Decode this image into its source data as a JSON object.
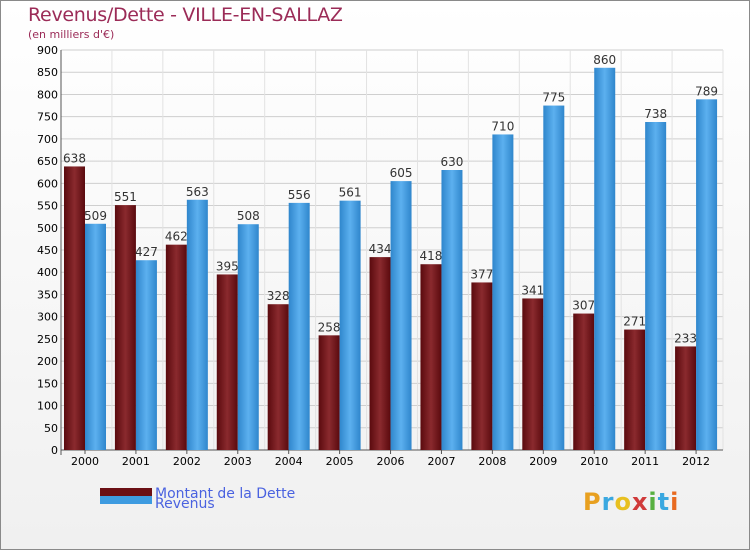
{
  "header": {
    "title": "Revenus/Dette - VILLE-EN-SALLAZ",
    "subtitle": "(en milliers d'€)"
  },
  "colors": {
    "dette": "#6b0f14",
    "revenus": "#3e9be0",
    "grid": "#cfcfcf",
    "axis_text": "#000000"
  },
  "chart_data": {
    "type": "bar",
    "title": "Revenus/Dette - VILLE-EN-SALLAZ",
    "subtitle": "(en milliers d'€)",
    "xlabel": "",
    "ylabel": "",
    "ylim": [
      0,
      900
    ],
    "yticks": [
      0,
      50,
      100,
      150,
      200,
      250,
      300,
      350,
      400,
      450,
      500,
      550,
      600,
      650,
      700,
      750,
      800,
      850,
      900
    ],
    "grid": true,
    "legend_position": "bottom-left",
    "categories": [
      "2000",
      "2001",
      "2002",
      "2003",
      "2004",
      "2005",
      "2006",
      "2007",
      "2008",
      "2009",
      "2010",
      "2011",
      "2012"
    ],
    "series": [
      {
        "name": "Montant de la Dette",
        "values": [
          638,
          551,
          462,
          395,
          328,
          258,
          434,
          418,
          377,
          341,
          307,
          271,
          233
        ]
      },
      {
        "name": "Revenus",
        "values": [
          509,
          427,
          563,
          508,
          556,
          561,
          605,
          630,
          710,
          775,
          860,
          738,
          789
        ]
      }
    ]
  },
  "legend": {
    "items": [
      {
        "label": "Montant de la Dette",
        "color": "#6b0f14"
      },
      {
        "label": "Revenus",
        "color": "#3e9be0"
      }
    ]
  },
  "logo": {
    "letters": [
      "P",
      "r",
      "o",
      "x",
      "i",
      "t",
      "i"
    ],
    "colors": [
      "#e8a020",
      "#3aa8e0",
      "#e8c020",
      "#d03a3a",
      "#58b040",
      "#3aa8e0",
      "#e86a20"
    ]
  }
}
